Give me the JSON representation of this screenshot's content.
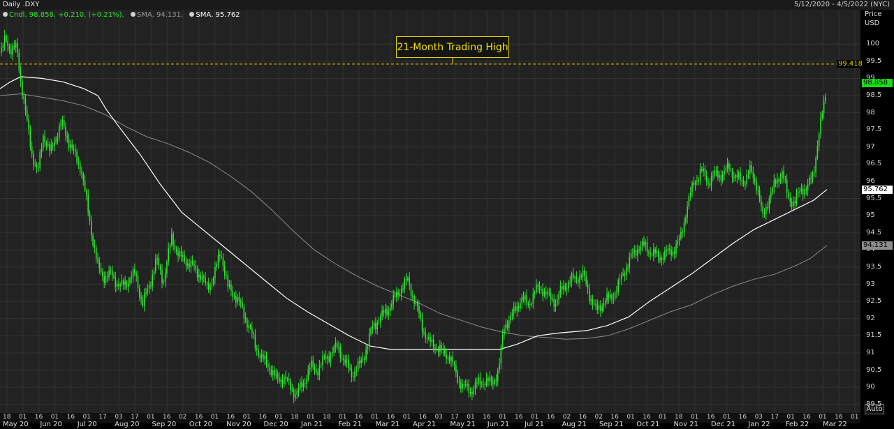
{
  "header": {
    "title": "Daily .DXY",
    "date_range": "5/12/2020 - 4/5/2022 (NYC)"
  },
  "legend": {
    "cndl": "Cndl, 98.858, +0.210, (+0.21%),",
    "sma_long": "SMA, 94.131,",
    "sma_short": "SMA, 95.762"
  },
  "annotation": {
    "text": "21-Month Trading High",
    "level_label": "99.418"
  },
  "axis": {
    "price_title": "Price",
    "currency": "USD",
    "auto_button": "Auto"
  },
  "colors": {
    "candle": "#2ee62e",
    "sma_short": "#ffffff",
    "sma_long": "#8c8c8c",
    "dashed_line": "#e8d400",
    "last_price_tag": "#16e016",
    "background": "#000000",
    "grid": "#333333"
  },
  "chart_data": {
    "type": "line",
    "title": "Daily .DXY",
    "ylabel": "Price USD",
    "ylim": [
      89.25,
      101.0
    ],
    "y_ticks": [
      "100",
      "99.5",
      "99",
      "98.5",
      "98",
      "97.5",
      "97",
      "96.5",
      "96",
      "95.5",
      "95",
      "94.5",
      "94",
      "93.5",
      "93",
      "92.5",
      "92",
      "91.5",
      "91",
      "90.5",
      "90",
      "89.5"
    ],
    "x_day_ticks": [
      "18",
      "01",
      "16",
      "01",
      "16",
      "01",
      "17",
      "03",
      "17",
      "01",
      "16",
      "02",
      "16",
      "01",
      "16",
      "01",
      "16",
      "01",
      "18",
      "01",
      "18",
      "01",
      "16",
      "01",
      "16",
      "01",
      "16",
      "03",
      "17",
      "01",
      "16",
      "01",
      "16",
      "01",
      "16",
      "02",
      "16",
      "02",
      "16",
      "01",
      "16",
      "01",
      "18",
      "01",
      "16",
      "01",
      "16",
      "03",
      "17",
      "01",
      "16",
      "01",
      "16",
      "01"
    ],
    "x_month_labels": [
      "May 20",
      "Jun 20",
      "Jul 20",
      "Aug 20",
      "Sep 20",
      "Oct 20",
      "Nov 20",
      "Dec 20",
      "Jan 21",
      "Feb 21",
      "Mar 21",
      "Apr 21",
      "May 21",
      "Jun 21",
      "Jul 21",
      "Aug 21",
      "Sep 21",
      "Oct 21",
      "Nov 21",
      "Dec 21",
      "Jan 22",
      "Feb 22",
      "Mar 22"
    ],
    "horizontal_level": 99.418,
    "last_values": {
      "candle": 98.858,
      "sma_short": 95.762,
      "sma_long": 94.131
    },
    "series": [
      {
        "name": "Cndl",
        "points": [
          [
            0,
            99.6
          ],
          [
            8,
            100.2
          ],
          [
            16,
            99.8
          ],
          [
            24,
            99.9
          ],
          [
            30,
            98.9
          ],
          [
            38,
            97.8
          ],
          [
            46,
            96.8
          ],
          [
            54,
            96.2
          ],
          [
            62,
            97.4
          ],
          [
            72,
            96.8
          ],
          [
            78,
            97.2
          ],
          [
            88,
            97.7
          ],
          [
            98,
            97.2
          ],
          [
            108,
            96.7
          ],
          [
            116,
            96.4
          ],
          [
            124,
            95.4
          ],
          [
            132,
            94.4
          ],
          [
            140,
            93.5
          ],
          [
            150,
            93.2
          ],
          [
            160,
            93.3
          ],
          [
            172,
            92.9
          ],
          [
            182,
            93.1
          ],
          [
            194,
            93.3
          ],
          [
            204,
            92.4
          ],
          [
            214,
            93.0
          ],
          [
            224,
            93.7
          ],
          [
            234,
            93.1
          ],
          [
            246,
            94.4
          ],
          [
            256,
            93.8
          ],
          [
            266,
            93.7
          ],
          [
            276,
            93.5
          ],
          [
            286,
            93.3
          ],
          [
            296,
            92.9
          ],
          [
            306,
            93.2
          ],
          [
            316,
            94.0
          ],
          [
            326,
            92.9
          ],
          [
            336,
            92.7
          ],
          [
            346,
            92.3
          ],
          [
            356,
            91.8
          ],
          [
            366,
            91.2
          ],
          [
            376,
            90.8
          ],
          [
            386,
            90.6
          ],
          [
            396,
            90.2
          ],
          [
            406,
            90.3
          ],
          [
            416,
            90.0
          ],
          [
            424,
            89.8
          ],
          [
            434,
            90.1
          ],
          [
            444,
            90.6
          ],
          [
            454,
            90.5
          ],
          [
            464,
            90.8
          ],
          [
            474,
            91.0
          ],
          [
            484,
            91.2
          ],
          [
            494,
            90.7
          ],
          [
            504,
            90.4
          ],
          [
            514,
            90.6
          ],
          [
            524,
            91.1
          ],
          [
            534,
            91.8
          ],
          [
            544,
            92.0
          ],
          [
            556,
            92.3
          ],
          [
            566,
            92.6
          ],
          [
            574,
            92.9
          ],
          [
            584,
            93.1
          ],
          [
            594,
            92.5
          ],
          [
            604,
            91.8
          ],
          [
            614,
            91.3
          ],
          [
            624,
            91.2
          ],
          [
            634,
            91.0
          ],
          [
            644,
            90.9
          ],
          [
            654,
            90.3
          ],
          [
            664,
            90.0
          ],
          [
            674,
            89.9
          ],
          [
            684,
            90.1
          ],
          [
            694,
            90.2
          ],
          [
            704,
            90.1
          ],
          [
            714,
            90.5
          ],
          [
            722,
            91.8
          ],
          [
            734,
            92.1
          ],
          [
            746,
            92.6
          ],
          [
            756,
            92.4
          ],
          [
            766,
            92.8
          ],
          [
            776,
            92.9
          ],
          [
            786,
            92.6
          ],
          [
            796,
            92.5
          ],
          [
            806,
            92.9
          ],
          [
            816,
            93.1
          ],
          [
            826,
            93.2
          ],
          [
            834,
            93.3
          ],
          [
            844,
            92.7
          ],
          [
            854,
            92.2
          ],
          [
            864,
            92.5
          ],
          [
            874,
            92.6
          ],
          [
            884,
            92.9
          ],
          [
            894,
            93.4
          ],
          [
            904,
            93.8
          ],
          [
            914,
            94.1
          ],
          [
            924,
            94.1
          ],
          [
            934,
            93.9
          ],
          [
            944,
            93.8
          ],
          [
            954,
            93.9
          ],
          [
            964,
            94.0
          ],
          [
            974,
            94.3
          ],
          [
            984,
            95.3
          ],
          [
            994,
            96.0
          ],
          [
            1004,
            96.3
          ],
          [
            1014,
            96.0
          ],
          [
            1024,
            96.2
          ],
          [
            1034,
            96.2
          ],
          [
            1044,
            96.4
          ],
          [
            1054,
            96.1
          ],
          [
            1064,
            96.0
          ],
          [
            1074,
            96.3
          ],
          [
            1084,
            95.9
          ],
          [
            1092,
            94.9
          ],
          [
            1102,
            95.6
          ],
          [
            1112,
            96.0
          ],
          [
            1120,
            96.3
          ],
          [
            1128,
            95.5
          ],
          [
            1138,
            95.4
          ],
          [
            1148,
            95.8
          ],
          [
            1156,
            95.8
          ],
          [
            1164,
            96.2
          ],
          [
            1172,
            97.3
          ],
          [
            1180,
            98.3
          ],
          [
            1184,
            98.858
          ]
        ]
      },
      {
        "name": "SMA, 95.762",
        "points": [
          [
            0,
            98.7
          ],
          [
            15,
            98.9
          ],
          [
            30,
            99.05
          ],
          [
            60,
            99.0
          ],
          [
            90,
            98.9
          ],
          [
            120,
            98.7
          ],
          [
            140,
            98.5
          ],
          [
            152,
            98.1
          ],
          [
            170,
            97.6
          ],
          [
            200,
            96.8
          ],
          [
            230,
            95.9
          ],
          [
            260,
            95.1
          ],
          [
            290,
            94.6
          ],
          [
            320,
            94.1
          ],
          [
            350,
            93.6
          ],
          [
            380,
            93.1
          ],
          [
            410,
            92.6
          ],
          [
            440,
            92.2
          ],
          [
            470,
            91.85
          ],
          [
            500,
            91.5
          ],
          [
            530,
            91.2
          ],
          [
            560,
            91.1
          ],
          [
            600,
            91.1
          ],
          [
            640,
            91.1
          ],
          [
            680,
            91.1
          ],
          [
            715,
            91.1
          ],
          [
            740,
            91.25
          ],
          [
            770,
            91.5
          ],
          [
            800,
            91.58
          ],
          [
            840,
            91.65
          ],
          [
            870,
            91.8
          ],
          [
            900,
            92.05
          ],
          [
            930,
            92.5
          ],
          [
            960,
            92.9
          ],
          [
            990,
            93.3
          ],
          [
            1020,
            93.75
          ],
          [
            1050,
            94.2
          ],
          [
            1080,
            94.6
          ],
          [
            1110,
            94.9
          ],
          [
            1140,
            95.2
          ],
          [
            1165,
            95.45
          ],
          [
            1184,
            95.762
          ]
        ]
      },
      {
        "name": "SMA, 94.131",
        "points": [
          [
            0,
            98.5
          ],
          [
            30,
            98.55
          ],
          [
            60,
            98.45
          ],
          [
            90,
            98.35
          ],
          [
            120,
            98.2
          ],
          [
            150,
            97.95
          ],
          [
            180,
            97.6
          ],
          [
            210,
            97.3
          ],
          [
            240,
            97.1
          ],
          [
            270,
            96.85
          ],
          [
            300,
            96.55
          ],
          [
            330,
            96.15
          ],
          [
            360,
            95.7
          ],
          [
            390,
            95.15
          ],
          [
            420,
            94.55
          ],
          [
            450,
            94.0
          ],
          [
            480,
            93.6
          ],
          [
            510,
            93.25
          ],
          [
            540,
            92.95
          ],
          [
            570,
            92.7
          ],
          [
            600,
            92.45
          ],
          [
            630,
            92.15
          ],
          [
            660,
            91.95
          ],
          [
            690,
            91.75
          ],
          [
            720,
            91.6
          ],
          [
            750,
            91.5
          ],
          [
            780,
            91.45
          ],
          [
            810,
            91.4
          ],
          [
            840,
            91.42
          ],
          [
            870,
            91.5
          ],
          [
            900,
            91.7
          ],
          [
            930,
            91.95
          ],
          [
            960,
            92.2
          ],
          [
            990,
            92.4
          ],
          [
            1020,
            92.7
          ],
          [
            1050,
            92.95
          ],
          [
            1080,
            93.15
          ],
          [
            1110,
            93.3
          ],
          [
            1140,
            93.55
          ],
          [
            1160,
            93.75
          ],
          [
            1184,
            94.131
          ]
        ]
      }
    ]
  }
}
